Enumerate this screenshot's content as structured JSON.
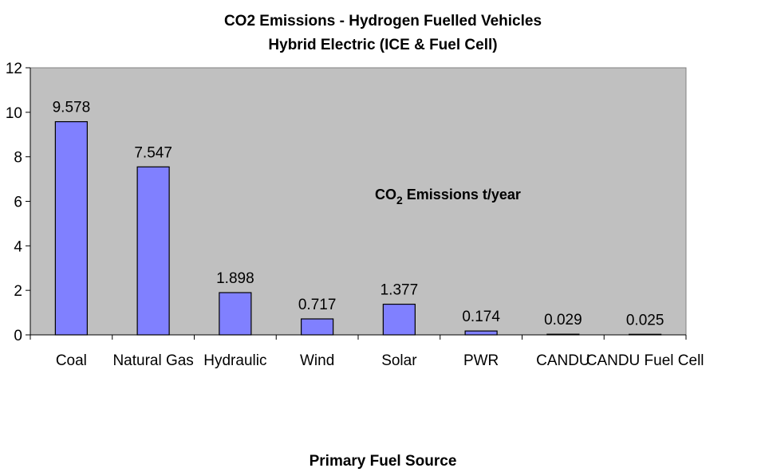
{
  "chart_data": {
    "type": "bar",
    "title": "CO2 Emissions - Hydrogen Fuelled Vehicles",
    "subtitle": "Hybrid Electric (ICE  & Fuel Cell)",
    "x_label": "Primary Fuel Source",
    "annotation": [
      "CO",
      "2",
      " Emissions t/year"
    ],
    "categories": [
      "Coal",
      "Natural Gas",
      "Hydraulic",
      "Wind",
      "Solar",
      "PWR",
      "CANDU",
      "CANDU Fuel Cell"
    ],
    "values": [
      9.578,
      7.547,
      1.898,
      0.717,
      1.377,
      0.174,
      0.029,
      0.025
    ],
    "color": "#8080ff",
    "ylim": [
      0,
      12
    ],
    "yticks": [
      0,
      2,
      4,
      6,
      8,
      10,
      12
    ],
    "plot_background": "#c0c0c0"
  }
}
